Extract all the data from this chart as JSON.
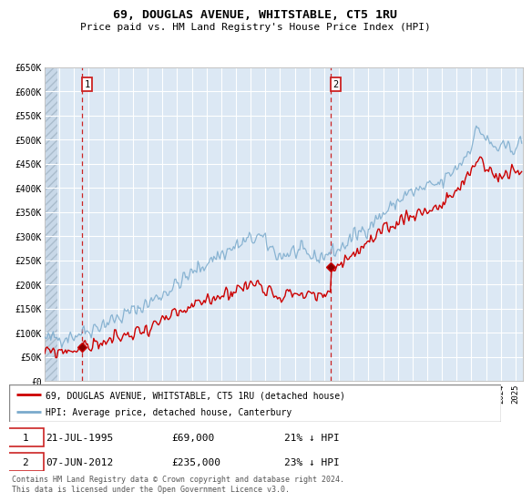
{
  "title": "69, DOUGLAS AVENUE, WHITSTABLE, CT5 1RU",
  "subtitle": "Price paid vs. HM Land Registry's House Price Index (HPI)",
  "ylim": [
    0,
    650000
  ],
  "yticks": [
    0,
    50000,
    100000,
    150000,
    200000,
    250000,
    300000,
    350000,
    400000,
    450000,
    500000,
    550000,
    600000,
    650000
  ],
  "ytick_labels": [
    "£0",
    "£50K",
    "£100K",
    "£150K",
    "£200K",
    "£250K",
    "£300K",
    "£350K",
    "£400K",
    "£450K",
    "£500K",
    "£550K",
    "£600K",
    "£650K"
  ],
  "sale1_x": 1995.55,
  "sale1_y": 69000,
  "sale2_x": 2012.43,
  "sale2_y": 235000,
  "property_color": "#cc0000",
  "hpi_color": "#7aaacc",
  "legend_property": "69, DOUGLAS AVENUE, WHITSTABLE, CT5 1RU (detached house)",
  "legend_hpi": "HPI: Average price, detached house, Canterbury",
  "sale1_date": "21-JUL-1995",
  "sale1_price": "£69,000",
  "sale1_hpi": "21% ↓ HPI",
  "sale2_date": "07-JUN-2012",
  "sale2_price": "£235,000",
  "sale2_hpi": "23% ↓ HPI",
  "footer": "Contains HM Land Registry data © Crown copyright and database right 2024.\nThis data is licensed under the Open Government Licence v3.0.",
  "xlim_start": 1993.0,
  "xlim_end": 2025.5,
  "bg_color": "#dce8f4",
  "grid_color": "#ffffff",
  "hatch_color": "#c8d8e8"
}
